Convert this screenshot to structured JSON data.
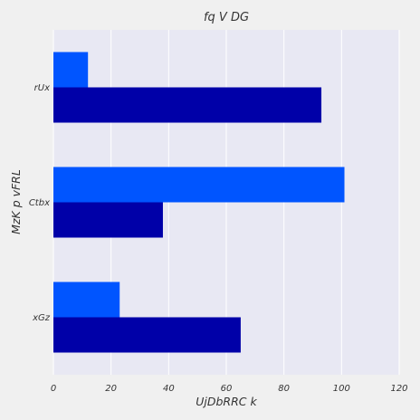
{
  "chart_data": {
    "type": "bar",
    "orientation": "horizontal",
    "title": "fq V  DG",
    "xlabel": "UjDbRRC k",
    "ylabel": "MzK p vFRL",
    "categories": [
      "rUx",
      "Ctbx",
      "xGz"
    ],
    "series": [
      {
        "color": "#0055ff",
        "values": [
          12,
          101,
          23
        ]
      },
      {
        "color": "#0000a8",
        "values": [
          93,
          38,
          65
        ]
      }
    ],
    "xlim": [
      0,
      120
    ],
    "xticks": [
      "0",
      "20",
      "40",
      "60",
      "80",
      "100",
      "120"
    ],
    "grid": true,
    "legend": "none",
    "plot_bg": "#e8e8f3",
    "page_bg": "#f0f0f0"
  }
}
